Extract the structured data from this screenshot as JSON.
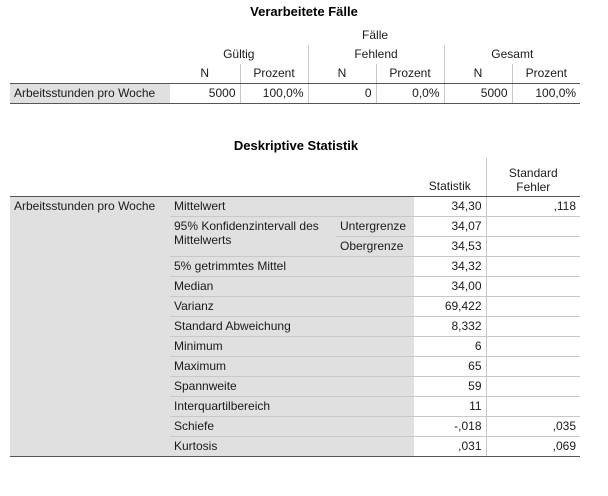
{
  "table1": {
    "title": "Verarbeitete Fälle",
    "group_header": "Fälle",
    "sub_groups": [
      "Gültig",
      "Fehlend",
      "Gesamt"
    ],
    "col_headers": [
      "N",
      "Prozent",
      "N",
      "Prozent",
      "N",
      "Prozent"
    ],
    "row_label": "Arbeitsstunden pro Woche",
    "values": [
      "5000",
      "100,0%",
      "0",
      "0,0%",
      "5000",
      "100,0%"
    ]
  },
  "table2": {
    "title": "Deskriptive Statistik",
    "col_statistik": "Statistik",
    "col_fehler_1": "Standard",
    "col_fehler_2": "Fehler",
    "variable": "Arbeitsstunden pro Woche",
    "ki_label": "95% Konfidenzintervall des Mittelwerts",
    "ki_sub": [
      "Untergrenze",
      "Obergrenze"
    ],
    "rows": [
      {
        "label": "Mittelwert",
        "stat": "34,30",
        "err": ",118"
      },
      {
        "label": "Untergrenze",
        "stat": "34,07",
        "err": ""
      },
      {
        "label": "Obergrenze",
        "stat": "34,53",
        "err": ""
      },
      {
        "label": "5% getrimmtes Mittel",
        "stat": "34,32",
        "err": ""
      },
      {
        "label": "Median",
        "stat": "34,00",
        "err": ""
      },
      {
        "label": "Varianz",
        "stat": "69,422",
        "err": ""
      },
      {
        "label": "Standard Abweichung",
        "stat": "8,332",
        "err": ""
      },
      {
        "label": "Minimum",
        "stat": "6",
        "err": ""
      },
      {
        "label": "Maximum",
        "stat": "65",
        "err": ""
      },
      {
        "label": "Spannweite",
        "stat": "59",
        "err": ""
      },
      {
        "label": "Interquartilbereich",
        "stat": "11",
        "err": ""
      },
      {
        "label": "Schiefe",
        "stat": "-,018",
        "err": ",035"
      },
      {
        "label": "Kurtosis",
        "stat": ",031",
        "err": ",069"
      }
    ]
  }
}
